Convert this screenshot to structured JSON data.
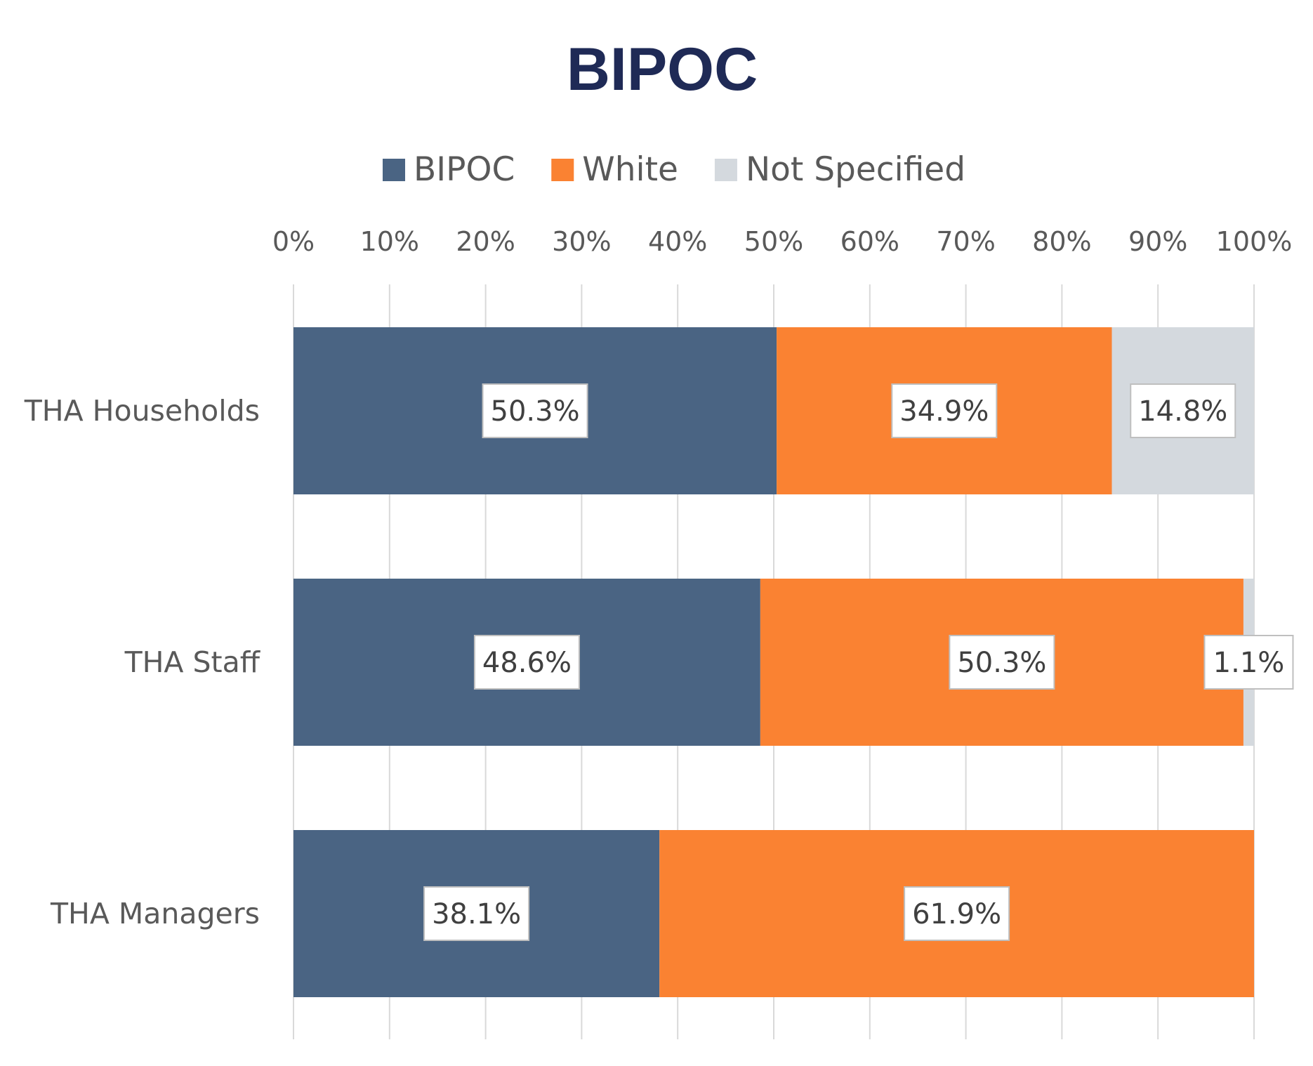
{
  "chart_data": {
    "type": "bar",
    "orientation": "horizontal",
    "stacked": "100%",
    "title": "BIPOC",
    "categories": [
      "THA Households",
      "THA Staff",
      "THA Managers"
    ],
    "series": [
      {
        "name": "BIPOC",
        "values": [
          50.3,
          48.6,
          38.1
        ],
        "labels": [
          "50.3%",
          "48.6%",
          "38.1%"
        ],
        "color": "#4a6483"
      },
      {
        "name": "White",
        "values": [
          34.9,
          50.3,
          61.9
        ],
        "labels": [
          "34.9%",
          "50.3%",
          "61.9%"
        ],
        "color": "#fa8232"
      },
      {
        "name": "Not Specified",
        "values": [
          14.8,
          1.1,
          0
        ],
        "labels": [
          "14.8%",
          "1.1%",
          ""
        ],
        "color": "#d4d9de"
      }
    ],
    "x_ticks": [
      "0%",
      "10%",
      "20%",
      "30%",
      "40%",
      "50%",
      "60%",
      "70%",
      "80%",
      "90%",
      "100%"
    ],
    "xlim": [
      0,
      100
    ],
    "x_axis_position": "top",
    "grid": "vertical",
    "legend_position": "top"
  }
}
